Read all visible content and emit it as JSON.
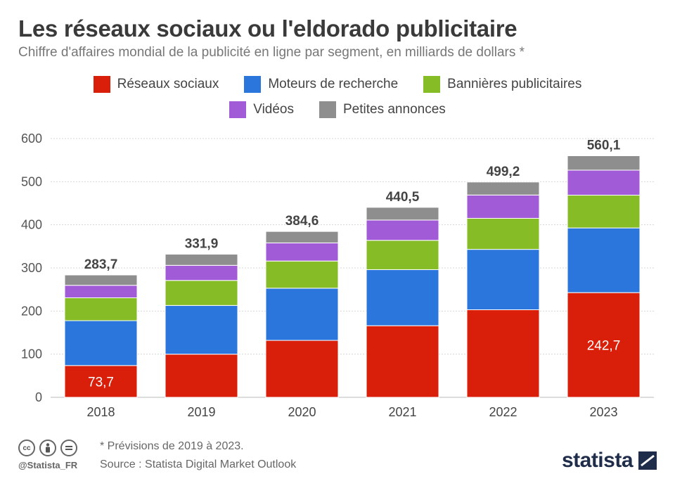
{
  "title": "Les réseaux sociaux ou l'eldorado publicitaire",
  "subtitle": "Chiffre d'affaires mondial de la publicité en ligne par segment, en milliards de dollars *",
  "legend": {
    "row1": [
      {
        "label": "Réseaux sociaux",
        "color": "#d91e0a"
      },
      {
        "label": "Moteurs de recherche",
        "color": "#2a76dd"
      },
      {
        "label": "Bannières publicitaires",
        "color": "#86bc25"
      }
    ],
    "row2": [
      {
        "label": "Vidéos",
        "color": "#a25bd6"
      },
      {
        "label": "Petites annonces",
        "color": "#8e8e8e"
      }
    ]
  },
  "chart_data": {
    "type": "bar",
    "stacked": true,
    "categories": [
      "2018",
      "2019",
      "2020",
      "2021",
      "2022",
      "2023"
    ],
    "series": [
      {
        "name": "Réseaux sociaux",
        "color": "#d91e0a",
        "values": [
          73.7,
          100,
          132,
          166,
          203,
          242.7
        ]
      },
      {
        "name": "Moteurs de recherche",
        "color": "#2a76dd",
        "values": [
          104,
          113,
          121,
          130,
          140,
          150
        ]
      },
      {
        "name": "Bannières publicitaires",
        "color": "#86bc25",
        "values": [
          53,
          58,
          63,
          68,
          72,
          76
        ]
      },
      {
        "name": "Vidéos",
        "color": "#a25bd6",
        "values": [
          29,
          35,
          42,
          47,
          54,
          58
        ]
      },
      {
        "name": "Petites annonces",
        "color": "#8e8e8e",
        "values": [
          24,
          25.9,
          26.6,
          29.5,
          30.2,
          33.4
        ]
      }
    ],
    "totals": [
      283.7,
      331.9,
      384.6,
      440.5,
      499.2,
      560.1
    ],
    "total_labels": [
      "283,7",
      "331,9",
      "384,6",
      "440,5",
      "499,2",
      "560,1"
    ],
    "inside_labels": [
      {
        "category": "2018",
        "series": "Réseaux sociaux",
        "text": "73,7"
      },
      {
        "category": "2023",
        "series": "Réseaux sociaux",
        "text": "242,7"
      }
    ],
    "yticks": [
      0,
      100,
      200,
      300,
      400,
      500,
      600
    ],
    "ylim": [
      0,
      600
    ],
    "grid": true,
    "legend_position": "top"
  },
  "footer": {
    "note": "* Prévisions de 2019 à 2023.",
    "source": "Source : Statista Digital Market Outlook",
    "handle": "@Statista_FR",
    "brand": "statista",
    "icons": [
      "cc-icon",
      "by-icon",
      "nd-icon"
    ]
  }
}
